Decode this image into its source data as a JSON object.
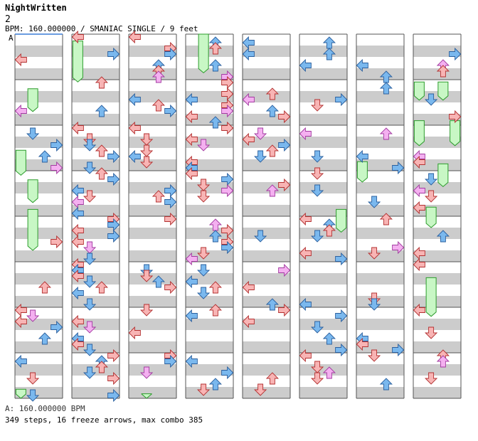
{
  "song": {
    "title": "NightWritten",
    "difficulty_level": "2",
    "info_line": "BPM: 160.000000 / SMANIAC SINGLE / 9 feet",
    "section_marker": "A",
    "bpm_footer": "A: 160.000000 BPM",
    "stats_footer": "349 steps, 16 freeze arrows, max combo 385"
  },
  "chart_data": {
    "type": "step-chart",
    "columns": 8,
    "measures_per_column": 8,
    "lanes": [
      "left",
      "down",
      "up",
      "right"
    ],
    "colors": {
      "quarter": "#f8b4b4",
      "eighth": "#7ab8ee",
      "sixteenth": "#f4b0f0",
      "freeze_fill": "#c8f7c5",
      "freeze_edge": "#2c9c2c",
      "band_gray": "#cccccc",
      "measure_line": "#555555",
      "marker_line": "#3a7bd5"
    },
    "freezes": [
      {
        "col": 0,
        "lane": 1,
        "start": 1.2,
        "end": 1.7
      },
      {
        "col": 0,
        "lane": 0,
        "start": 2.55,
        "end": 3.1
      },
      {
        "col": 0,
        "lane": 1,
        "start": 3.2,
        "end": 3.7
      },
      {
        "col": 0,
        "lane": 1,
        "start": 3.85,
        "end": 4.75
      },
      {
        "col": 0,
        "lane": 0,
        "start": 7.8,
        "end": 8.0
      },
      {
        "col": 1,
        "lane": 0,
        "start": 0.15,
        "end": 1.05
      },
      {
        "col": 2,
        "lane": 1,
        "start": 7.9,
        "end": 8.0
      },
      {
        "col": 3,
        "lane": 1,
        "start": 0.0,
        "end": 0.85
      },
      {
        "col": 5,
        "lane": 3,
        "start": 3.85,
        "end": 4.35
      },
      {
        "col": 6,
        "lane": 0,
        "start": 2.8,
        "end": 3.25
      },
      {
        "col": 7,
        "lane": 0,
        "start": 1.05,
        "end": 1.45
      },
      {
        "col": 7,
        "lane": 2,
        "start": 1.05,
        "end": 1.45
      },
      {
        "col": 7,
        "lane": 0,
        "start": 1.9,
        "end": 2.45
      },
      {
        "col": 7,
        "lane": 3,
        "start": 1.9,
        "end": 2.45
      },
      {
        "col": 7,
        "lane": 2,
        "start": 2.85,
        "end": 3.35
      },
      {
        "col": 7,
        "lane": 1,
        "start": 3.8,
        "end": 4.25
      },
      {
        "col": 7,
        "lane": 1,
        "start": 5.35,
        "end": 6.2
      }
    ],
    "arrow_seed": 20240517,
    "steps": 349,
    "freeze_arrows": 16,
    "max_combo": 385
  }
}
